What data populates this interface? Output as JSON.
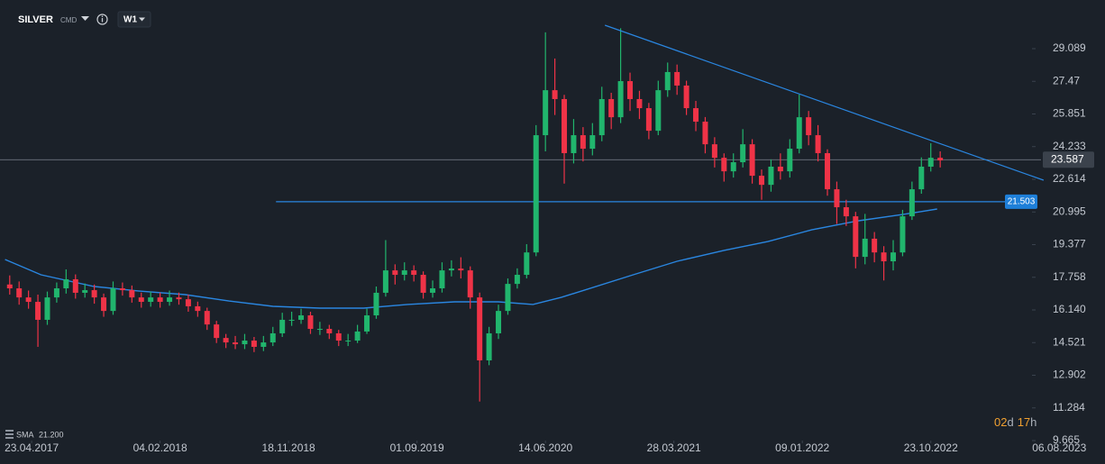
{
  "chart_data": {
    "type": "candlestick",
    "symbol": "SILVER",
    "market": "CMD",
    "timeframe": "W1",
    "up_color": "#21b56d",
    "down_color": "#ef3347",
    "xlim": [
      -10.1,
      319.3
    ],
    "xticks": [
      {
        "value": 0,
        "label": "23.04.2017"
      },
      {
        "value": 41,
        "label": "04.02.2018"
      },
      {
        "value": 82,
        "label": "18.11.2018"
      },
      {
        "value": 123,
        "label": "01.09.2019"
      },
      {
        "value": 164,
        "label": "14.06.2020"
      },
      {
        "value": 205,
        "label": "28.03.2021"
      },
      {
        "value": 246,
        "label": "09.01.2022"
      },
      {
        "value": 287,
        "label": "23.10.2022"
      },
      {
        "value": 328,
        "label": "06.08.2023"
      }
    ],
    "ylim": [
      9.665,
      31.5
    ],
    "yticks": [
      29.089,
      27.47,
      25.851,
      24.233,
      22.614,
      20.995,
      19.377,
      17.758,
      {
        "value": 16.14,
        "label": "16.140"
      },
      14.521,
      12.902,
      11.284,
      9.665
    ],
    "candles": {
      "x": [
        -7,
        -4,
        -1,
        2,
        5,
        8,
        11,
        14,
        17,
        20,
        23,
        26,
        29,
        32,
        35,
        38,
        41,
        44,
        47,
        50,
        53,
        56,
        59,
        62,
        65,
        68,
        71,
        74,
        77,
        80,
        83,
        86,
        89,
        92,
        95,
        98,
        101,
        104,
        107,
        110,
        113,
        116,
        119,
        122,
        125,
        128,
        131,
        134,
        137,
        140,
        143,
        146,
        149,
        152,
        155,
        158,
        161,
        164,
        167,
        170,
        173,
        176,
        179,
        182,
        185,
        188,
        191,
        194,
        197,
        200,
        203,
        206,
        209,
        212,
        215,
        218,
        221,
        224,
        227,
        230,
        233,
        236,
        239,
        242,
        245,
        248,
        251,
        254,
        257,
        260,
        263,
        266,
        269,
        272,
        275,
        278,
        281,
        284,
        287,
        290
      ],
      "open": [
        17.4,
        17.21,
        16.76,
        16.54,
        15.65,
        16.76,
        17.21,
        17.66,
        16.99,
        17.12,
        16.76,
        16.09,
        17.21,
        17.12,
        16.76,
        16.54,
        16.76,
        16.54,
        16.76,
        16.67,
        16.32,
        16.09,
        15.42,
        14.75,
        14.53,
        14.44,
        14.62,
        14.31,
        14.53,
        14.98,
        15.65,
        15.65,
        15.87,
        15.2,
        15.2,
        14.98,
        14.62,
        14.62,
        15.07,
        15.87,
        16.99,
        18.1,
        17.88,
        18.1,
        17.88,
        16.99,
        17.21,
        18.1,
        18.19,
        18.1,
        16.76,
        13.64,
        14.98,
        16.09,
        17.43,
        17.88,
        18.99,
        24.8,
        27.03,
        26.59,
        23.91,
        24.8,
        24.13,
        24.8,
        26.59,
        25.69,
        27.48,
        26.59,
        26.14,
        25.02,
        27.03,
        27.93,
        27.26,
        26.14,
        25.47,
        24.35,
        23.68,
        23.01,
        23.46,
        24.35,
        22.79,
        22.34,
        23.24,
        23.01,
        24.13,
        25.69,
        24.8,
        23.91,
        22.12,
        21.23,
        20.78,
        18.77,
        19.67,
        18.99,
        18.55,
        18.99,
        20.78,
        22.12,
        23.24,
        23.68
      ],
      "high": [
        17.85,
        17.55,
        17.1,
        16.9,
        17.05,
        17.5,
        18.15,
        17.9,
        17.45,
        17.4,
        16.95,
        17.55,
        17.5,
        17.35,
        17.0,
        17.05,
        17.0,
        17.1,
        17.0,
        16.9,
        16.55,
        16.25,
        15.6,
        14.95,
        14.85,
        14.95,
        14.8,
        14.85,
        15.3,
        16.0,
        16.05,
        16.2,
        16.05,
        15.55,
        15.4,
        15.15,
        14.95,
        15.4,
        16.2,
        17.3,
        19.6,
        18.4,
        18.5,
        18.35,
        18.05,
        17.6,
        18.5,
        18.6,
        18.75,
        18.3,
        17.0,
        15.3,
        16.4,
        17.7,
        18.2,
        19.4,
        25.3,
        29.9,
        28.6,
        26.8,
        25.6,
        25.2,
        25.4,
        27.2,
        26.9,
        30.1,
        27.9,
        27.0,
        26.4,
        27.5,
        28.4,
        28.3,
        27.5,
        26.5,
        25.7,
        24.7,
        23.9,
        23.9,
        25.1,
        24.6,
        23.1,
        23.6,
        23.9,
        24.6,
        26.81,
        26.0,
        25.3,
        24.1,
        22.5,
        21.6,
        21.0,
        20.9,
        20.0,
        19.3,
        19.6,
        21.1,
        22.5,
        23.7,
        24.4,
        24.0
      ],
      "low": [
        16.9,
        16.4,
        16.2,
        14.31,
        15.4,
        16.5,
        16.95,
        16.7,
        16.75,
        16.45,
        15.8,
        15.9,
        16.85,
        16.5,
        16.25,
        16.3,
        16.25,
        16.35,
        16.4,
        16.05,
        15.8,
        15.15,
        14.5,
        14.25,
        14.2,
        14.2,
        14.05,
        14.1,
        14.35,
        14.8,
        15.35,
        15.45,
        14.95,
        14.9,
        14.7,
        14.35,
        14.35,
        14.5,
        14.95,
        15.7,
        16.8,
        17.4,
        17.6,
        17.55,
        16.7,
        16.75,
        17.0,
        17.8,
        17.7,
        16.2,
        11.6,
        13.4,
        14.7,
        15.9,
        17.2,
        17.7,
        18.8,
        24.0,
        25.8,
        22.4,
        23.4,
        23.5,
        23.8,
        24.5,
        25.1,
        25.4,
        26.0,
        25.6,
        24.6,
        24.8,
        26.7,
        26.8,
        25.8,
        25.0,
        23.9,
        23.2,
        22.5,
        22.7,
        23.2,
        22.4,
        21.6,
        22.0,
        22.6,
        22.7,
        23.9,
        24.3,
        23.5,
        21.8,
        20.4,
        20.3,
        18.2,
        18.4,
        18.5,
        17.6,
        18.1,
        18.8,
        20.6,
        21.9,
        23.0,
        23.2
      ],
      "close": [
        17.21,
        16.76,
        16.54,
        15.65,
        16.76,
        17.21,
        17.66,
        16.99,
        17.12,
        16.76,
        16.09,
        17.21,
        17.12,
        16.76,
        16.54,
        16.76,
        16.54,
        16.76,
        16.67,
        16.32,
        16.09,
        15.42,
        14.75,
        14.53,
        14.44,
        14.62,
        14.31,
        14.53,
        14.98,
        15.65,
        15.65,
        15.87,
        15.2,
        15.2,
        14.98,
        14.62,
        14.62,
        15.07,
        15.87,
        16.99,
        18.1,
        17.88,
        18.1,
        17.88,
        16.99,
        17.21,
        18.1,
        18.19,
        18.1,
        16.76,
        13.64,
        14.98,
        16.09,
        17.43,
        17.88,
        18.99,
        24.8,
        27.03,
        26.59,
        23.91,
        24.8,
        24.13,
        24.8,
        26.59,
        25.69,
        27.48,
        26.59,
        26.14,
        25.02,
        27.03,
        27.93,
        27.26,
        26.14,
        25.47,
        24.35,
        23.68,
        23.01,
        23.46,
        24.35,
        22.79,
        22.34,
        23.24,
        23.01,
        24.13,
        25.69,
        24.8,
        23.91,
        22.12,
        21.23,
        20.78,
        18.77,
        19.67,
        18.99,
        18.55,
        18.99,
        20.78,
        22.12,
        23.24,
        23.68,
        23.55
      ]
    },
    "sma": {
      "name": "SMA",
      "label": "21.200",
      "color": "#2a86e0",
      "x": [
        -8.5,
        3,
        20,
        34,
        49,
        63,
        77,
        92,
        106,
        120,
        135,
        149,
        160,
        169,
        192,
        206,
        221,
        235,
        249,
        264,
        278,
        289
      ],
      "values": [
        18.64,
        17.88,
        17.3,
        17.08,
        16.9,
        16.58,
        16.32,
        16.23,
        16.23,
        16.41,
        16.54,
        16.54,
        16.41,
        16.76,
        17.88,
        18.55,
        19.09,
        19.53,
        20.11,
        20.56,
        20.87,
        21.14
      ]
    },
    "level": {
      "value": 21.503,
      "x": [
        78,
        311
      ],
      "color": "#2a86e0"
    },
    "trendline": {
      "x": [
        183,
        323
      ],
      "values": [
        30.25,
        22.57
      ],
      "color": "#2a86e0"
    },
    "last_price": 23.587,
    "countdown": [
      "02",
      "d",
      "17",
      "h"
    ]
  }
}
